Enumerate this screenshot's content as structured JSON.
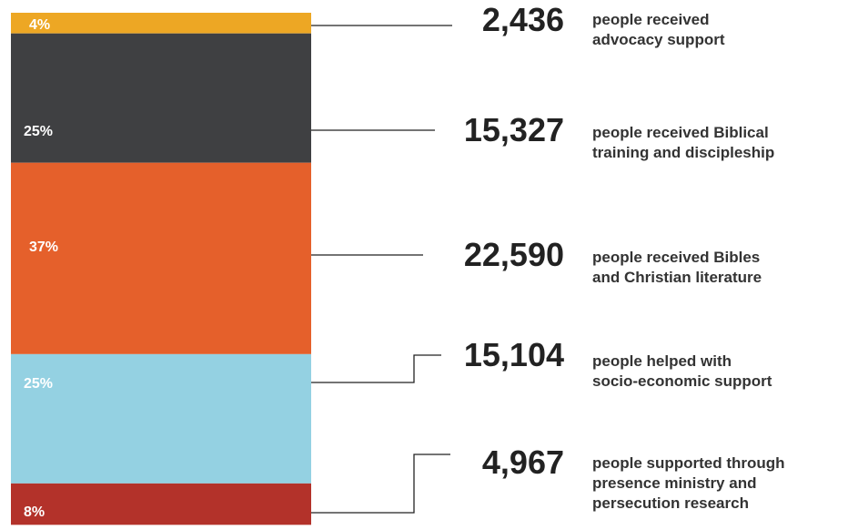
{
  "chart_data": {
    "type": "stacked-bar",
    "categories": [
      "people received\nadvocacy support",
      "people received Biblical\ntraining and discipleship",
      "people received Bibles\nand Christian literature",
      "people helped with\nsocio-economic support",
      "people supported through\npresence ministry and\npersecution research"
    ],
    "values": [
      4,
      25,
      37,
      25,
      8
    ],
    "value_labels": [
      "4%",
      "25%",
      "37%",
      "25%",
      "8%"
    ],
    "counts": [
      2436,
      15327,
      22590,
      15104,
      4967
    ],
    "count_labels": [
      "2,436",
      "15,327",
      "22,590",
      "15,104",
      "4,967"
    ],
    "colors": [
      "#eda724",
      "#3f4042",
      "#e5602b",
      "#94d1e2",
      "#b3322a"
    ]
  }
}
